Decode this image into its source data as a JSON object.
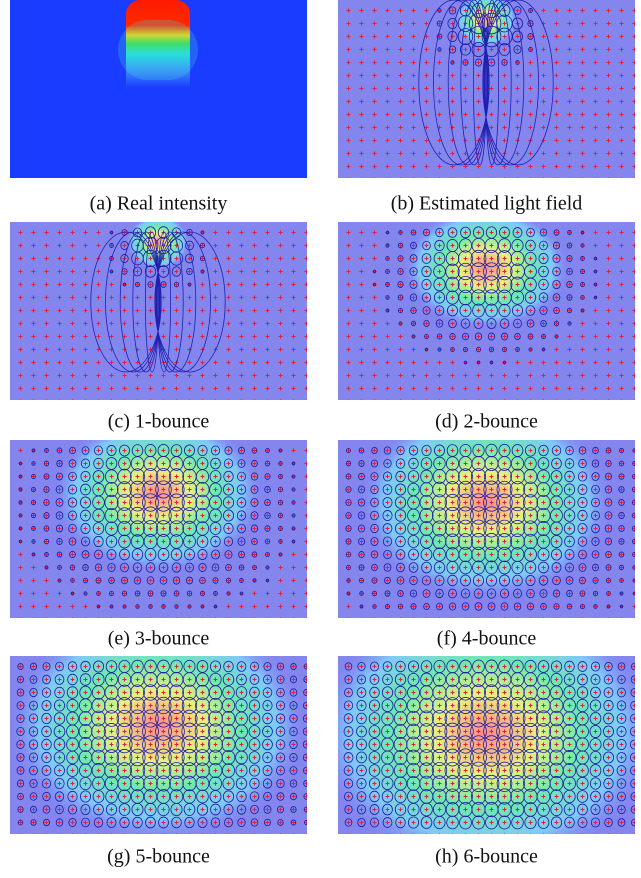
{
  "panels": [
    {
      "caption": "(a) Real intensity"
    },
    {
      "caption": "(b) Estimated light field"
    },
    {
      "caption": "(c) 1-bounce"
    },
    {
      "caption": "(d) 2-bounce"
    },
    {
      "caption": "(e) 3-bounce"
    },
    {
      "caption": "(f) 4-bounce"
    },
    {
      "caption": "(g) 5-bounce"
    },
    {
      "caption": "(h) 6-bounce"
    }
  ]
}
